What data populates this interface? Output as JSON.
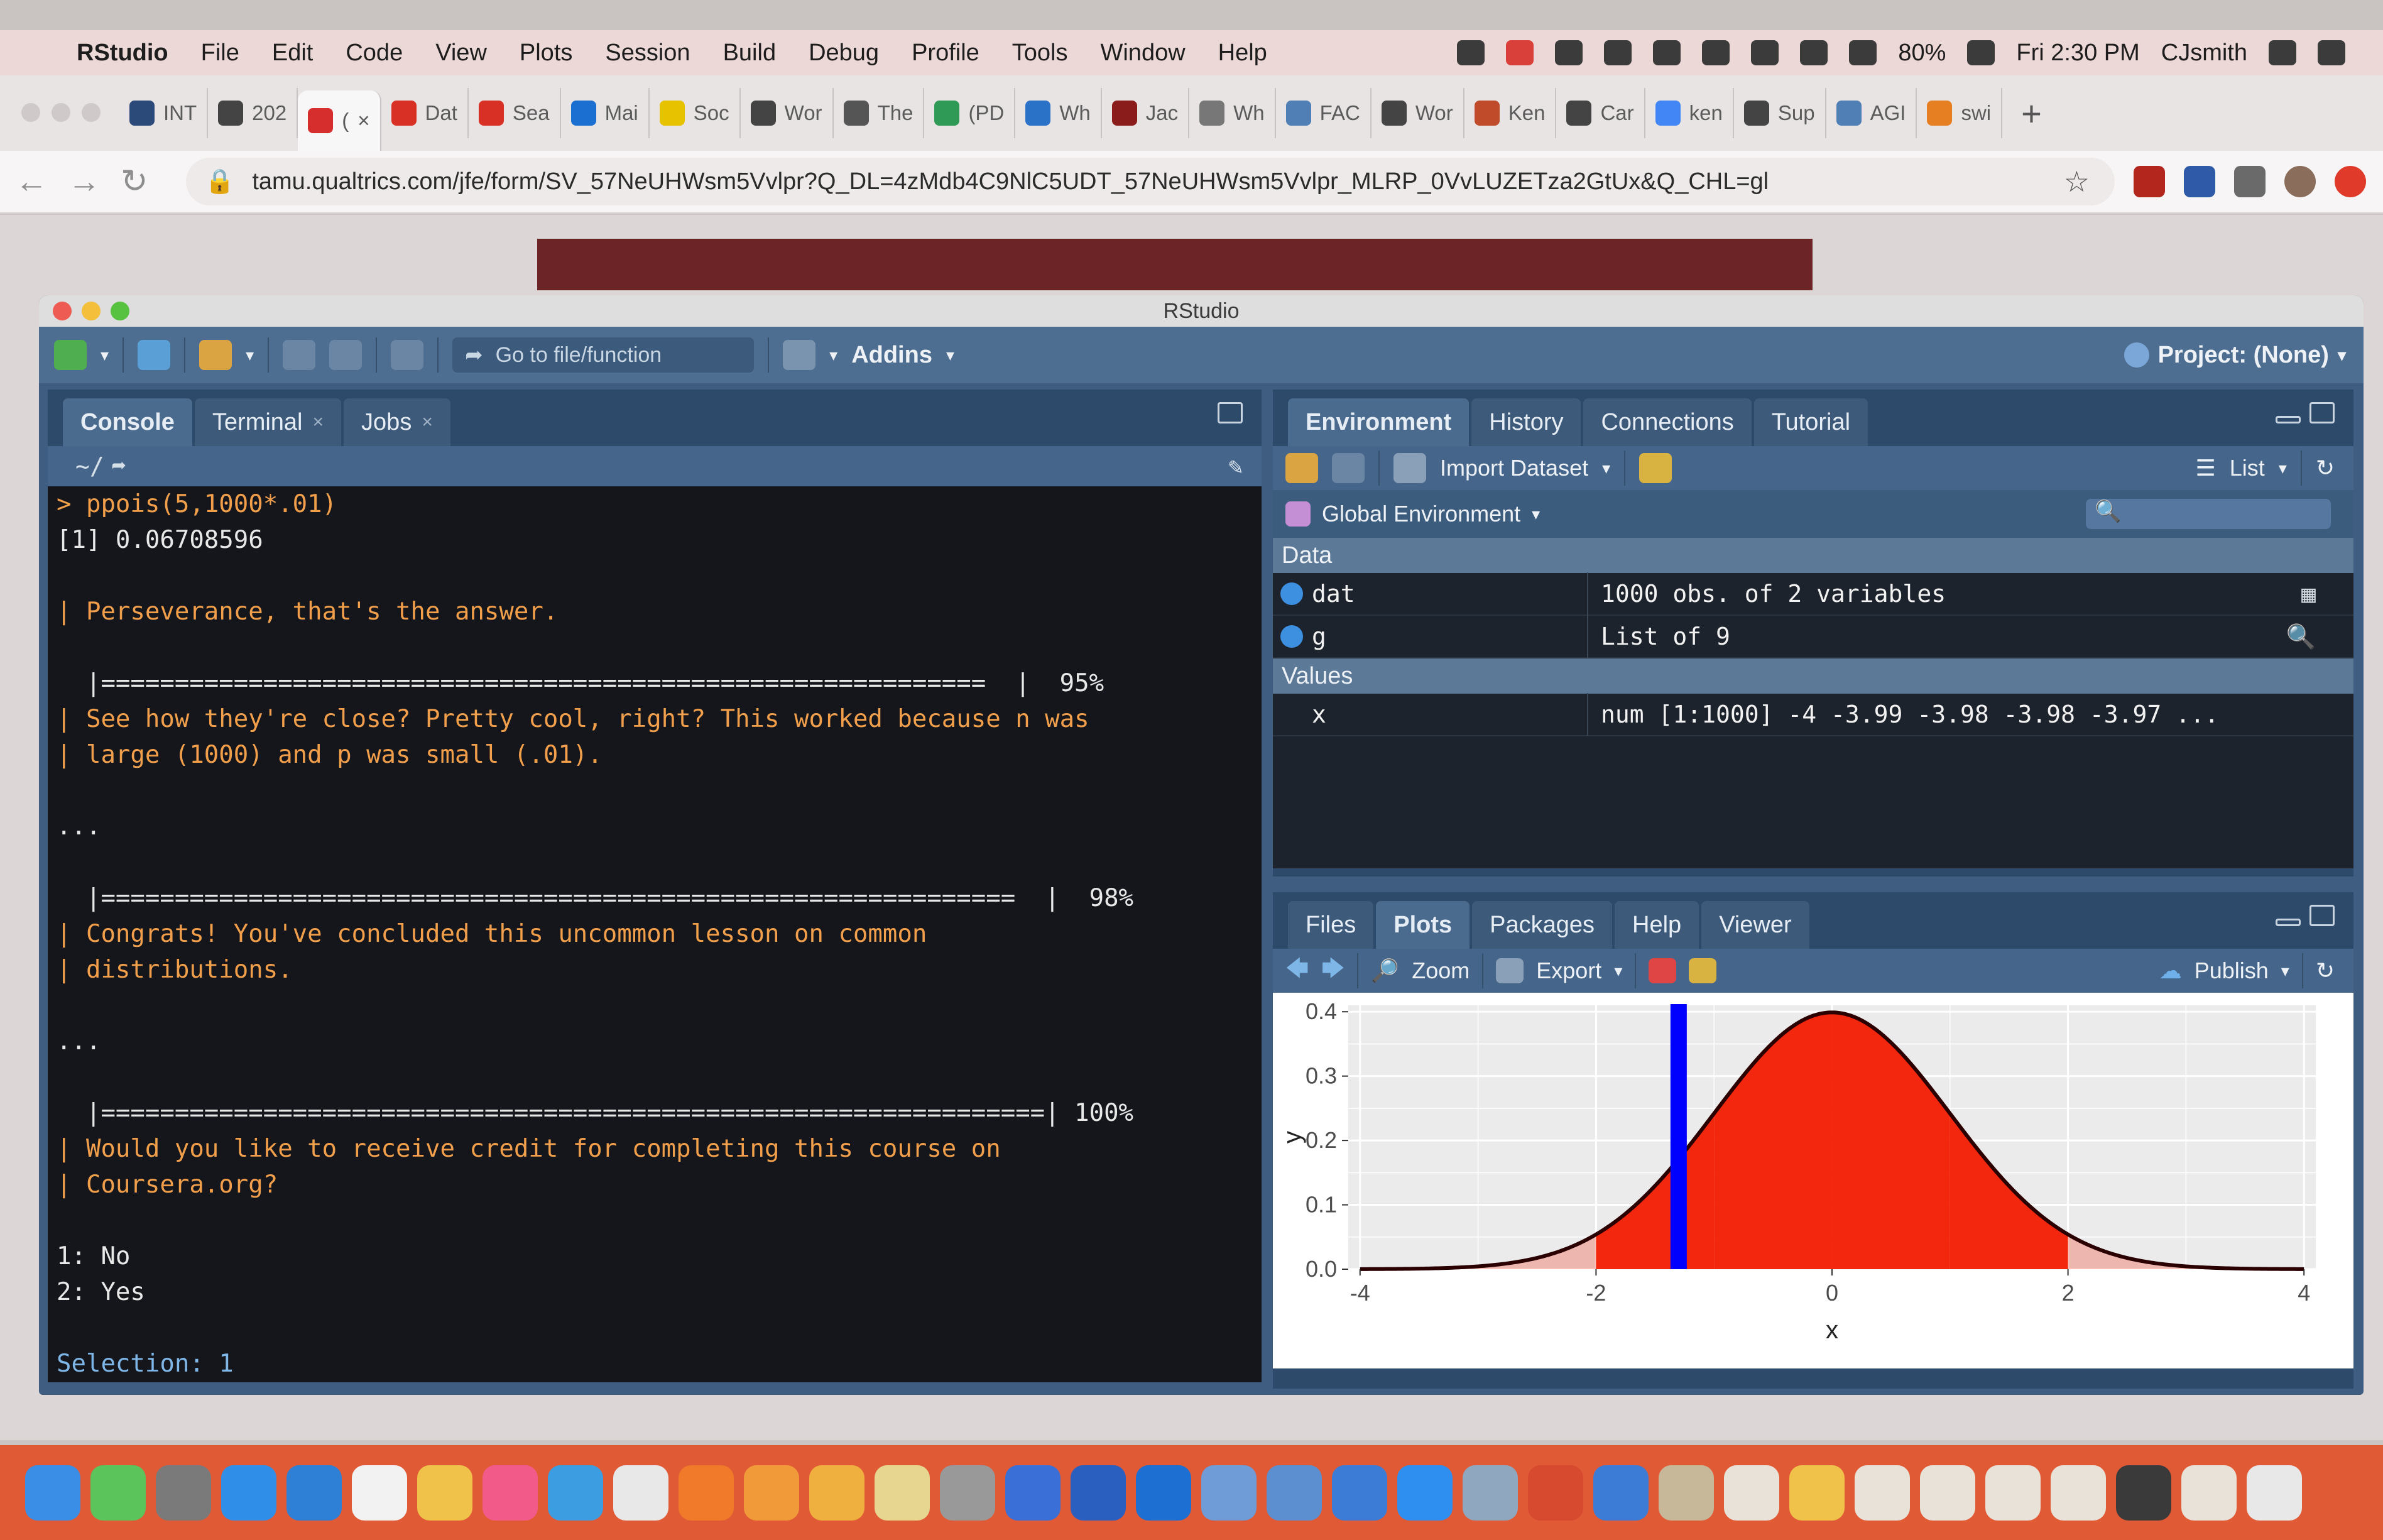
{
  "menubar": {
    "app": "RStudio",
    "items": [
      "File",
      "Edit",
      "Code",
      "View",
      "Plots",
      "Session",
      "Build",
      "Debug",
      "Profile",
      "Tools",
      "Window",
      "Help"
    ],
    "battery": "80%",
    "clock": "Fri 2:30 PM",
    "user": "CJsmith"
  },
  "browser": {
    "tabs": [
      {
        "label": "INT",
        "color": "#2b4a7a"
      },
      {
        "label": "202",
        "color": "#444444"
      },
      {
        "label": "(",
        "color": "#d62d2d",
        "active": true
      },
      {
        "label": "Dat",
        "color": "#d93025"
      },
      {
        "label": "Sea",
        "color": "#d93025"
      },
      {
        "label": "Mai",
        "color": "#1b6fd0"
      },
      {
        "label": "Soc",
        "color": "#e6c200"
      },
      {
        "label": "Wor",
        "color": "#444444"
      },
      {
        "label": "The",
        "color": "#555555"
      },
      {
        "label": "(PD",
        "color": "#2f9a55"
      },
      {
        "label": "Wh",
        "color": "#2a72c8"
      },
      {
        "label": "Jac",
        "color": "#8b1c1c"
      },
      {
        "label": "Wh",
        "color": "#777777"
      },
      {
        "label": "FAC",
        "color": "#4f7fb5"
      },
      {
        "label": "Wor",
        "color": "#444444"
      },
      {
        "label": "Ken",
        "color": "#c04b2a"
      },
      {
        "label": "Car",
        "color": "#444444"
      },
      {
        "label": "ken",
        "color": "#4285f4"
      },
      {
        "label": "Sup",
        "color": "#444444"
      },
      {
        "label": "AGI",
        "color": "#4f7fb5"
      },
      {
        "label": "swi",
        "color": "#e67e22"
      }
    ],
    "new_tab": "+",
    "url": "tamu.qualtrics.com/jfe/form/SV_57NeUHWsm5Vvlpr?Q_DL=4zMdb4C9NlC5UDT_57NeUHWsm5Vvlpr_MLRP_0VvLUZETza2GtUx&Q_CHL=gl"
  },
  "rstudio": {
    "title": "RStudio",
    "toolbar": {
      "goto_placeholder": "Go to file/function",
      "addins": "Addins",
      "project": "Project: (None)"
    },
    "left_tabs": [
      {
        "label": "Console",
        "active": true,
        "closable": false
      },
      {
        "label": "Terminal",
        "active": false,
        "closable": true
      },
      {
        "label": "Jobs",
        "active": false,
        "closable": true
      }
    ],
    "console_path": "~/",
    "console_lines": [
      {
        "text": "> ppois(5,1000*.01)",
        "style": "orange"
      },
      {
        "text": "[1] 0.06708596",
        "style": ""
      },
      {
        "text": "",
        "style": ""
      },
      {
        "text": "| Perseverance, that's the answer.",
        "style": "orange"
      },
      {
        "text": "",
        "style": ""
      },
      {
        "text": "  |============================================================  |  95%",
        "style": "pbar"
      },
      {
        "text": "| See how they're close? Pretty cool, right? This worked because n was",
        "style": "orange"
      },
      {
        "text": "| large (1000) and p was small (.01).",
        "style": "orange"
      },
      {
        "text": "",
        "style": ""
      },
      {
        "text": "...",
        "style": ""
      },
      {
        "text": "",
        "style": ""
      },
      {
        "text": "  |==============================================================  |  98%",
        "style": "pbar"
      },
      {
        "text": "| Congrats! You've concluded this uncommon lesson on common",
        "style": "orange"
      },
      {
        "text": "| distributions.",
        "style": "orange"
      },
      {
        "text": "",
        "style": ""
      },
      {
        "text": "...",
        "style": ""
      },
      {
        "text": "",
        "style": ""
      },
      {
        "text": "  |================================================================| 100%",
        "style": "pbar"
      },
      {
        "text": "| Would you like to receive credit for completing this course on",
        "style": "orange"
      },
      {
        "text": "| Coursera.org?",
        "style": "orange"
      },
      {
        "text": "",
        "style": ""
      },
      {
        "text": "1: No",
        "style": ""
      },
      {
        "text": "2: Yes",
        "style": ""
      },
      {
        "text": "",
        "style": ""
      },
      {
        "text": "Selection: 1",
        "style": "blue"
      }
    ],
    "env_tabs": [
      {
        "label": "Environment",
        "active": true
      },
      {
        "label": "History",
        "active": false
      },
      {
        "label": "Connections",
        "active": false
      },
      {
        "label": "Tutorial",
        "active": false
      }
    ],
    "env_toolbar": {
      "import": "Import Dataset",
      "view": "List"
    },
    "global_env": "Global Environment",
    "sections": {
      "data": "Data",
      "values": "Values"
    },
    "data_rows": [
      {
        "name": "dat",
        "value": "1000 obs. of 2 variables"
      },
      {
        "name": "g",
        "value": "List of 9"
      }
    ],
    "value_rows": [
      {
        "name": "x",
        "value": "num [1:1000] -4 -3.99 -3.98 -3.98 -3.97 ..."
      }
    ],
    "plot_tabs": [
      {
        "label": "Files",
        "active": false
      },
      {
        "label": "Plots",
        "active": true
      },
      {
        "label": "Packages",
        "active": false
      },
      {
        "label": "Help",
        "active": false
      },
      {
        "label": "Viewer",
        "active": false
      }
    ],
    "plot_toolbar": {
      "zoom": "Zoom",
      "export": "Export",
      "publish": "Publish"
    }
  },
  "chart_data": {
    "type": "area",
    "xlabel": "x",
    "ylabel": "y",
    "x_ticks": [
      "-4",
      "-2",
      "0",
      "2",
      "4"
    ],
    "y_ticks": [
      "0.0",
      "0.1",
      "0.2",
      "0.3",
      "0.4"
    ],
    "xlim": [
      -4.1,
      4.1
    ],
    "ylim": [
      0,
      0.41
    ],
    "curve": "standard normal density",
    "shaded_bands": [
      [
        -2,
        -1
      ],
      [
        -1,
        1
      ],
      [
        1,
        2
      ]
    ],
    "vertical_line_x": -1.3,
    "fill_color": "#f21a00",
    "line_color": "#0000ff",
    "grid": true
  }
}
